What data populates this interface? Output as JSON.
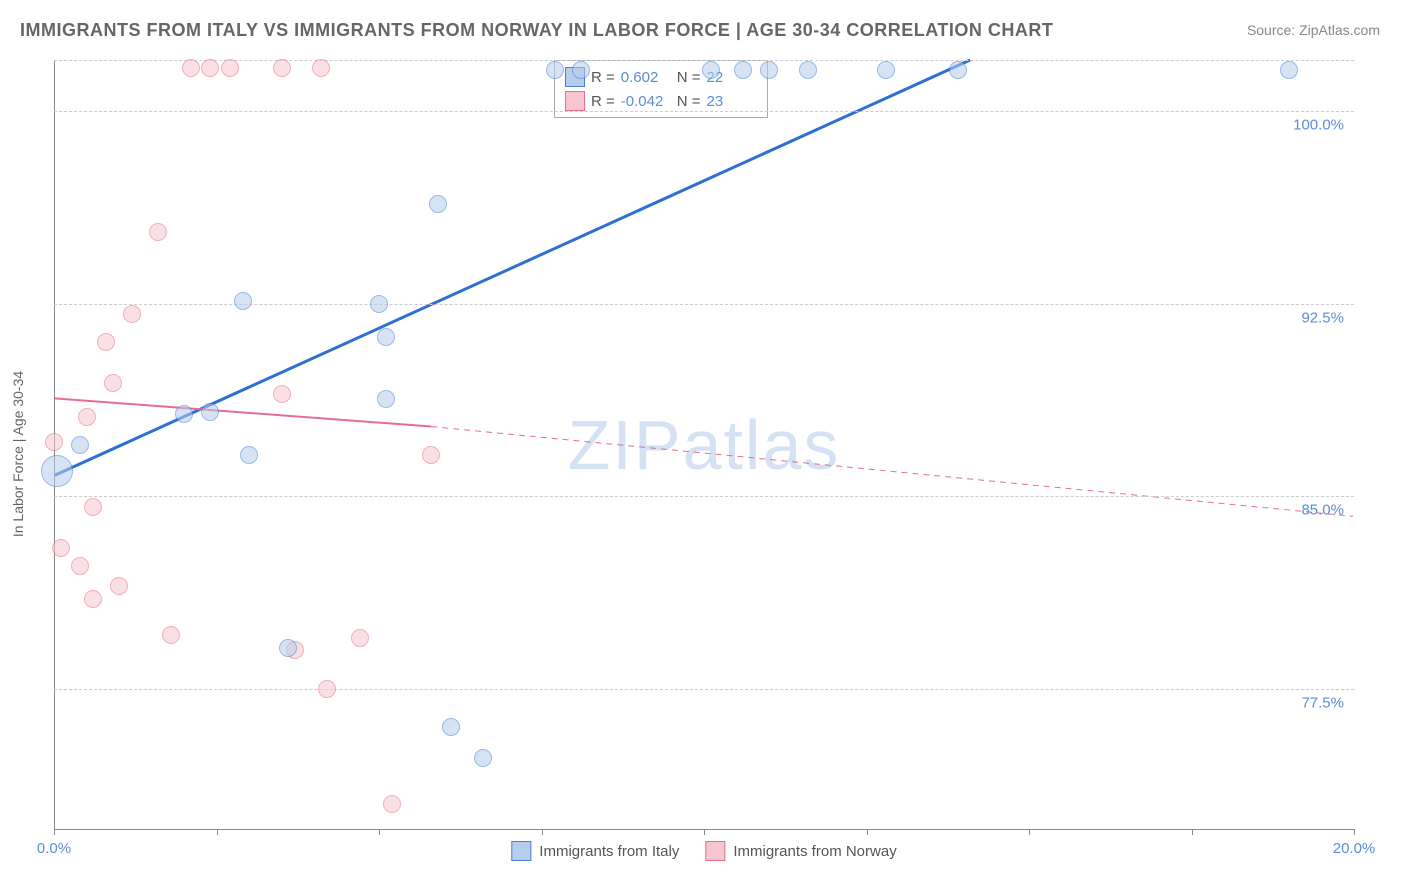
{
  "title": "IMMIGRANTS FROM ITALY VS IMMIGRANTS FROM NORWAY IN LABOR FORCE | AGE 30-34 CORRELATION CHART",
  "source_label": "Source:",
  "source_name": "ZipAtlas.com",
  "y_axis_label": "In Labor Force | Age 30-34",
  "watermark": "ZIPatlas",
  "colors": {
    "series_a_fill": "#b6cdec",
    "series_a_stroke": "#4b7fd1",
    "series_b_fill": "#f6c6d0",
    "series_b_stroke": "#e56f8f",
    "axis_text": "#5b8dd6",
    "grid": "#cccccc",
    "title_text": "#666666",
    "line_a": "#2e6fd4",
    "line_b": "#e56f8f"
  },
  "xlim": [
    0,
    20
  ],
  "ylim": [
    72,
    102
  ],
  "x_ticks": [
    0,
    2.5,
    5,
    7.5,
    10,
    12.5,
    15,
    17.5,
    20
  ],
  "x_tick_labels": {
    "0": "0.0%",
    "20": "20.0%"
  },
  "y_gridlines": [
    77.5,
    85.0,
    92.5,
    100.0,
    102.0
  ],
  "y_tick_labels": {
    "77.5": "77.5%",
    "85.0": "85.0%",
    "92.5": "92.5%",
    "100.0": "100.0%"
  },
  "legend_top": {
    "rows": [
      {
        "swatch": "a",
        "r_label": "R =",
        "r": "0.602",
        "n_label": "N =",
        "n": "22"
      },
      {
        "swatch": "b",
        "r_label": "R =",
        "r": "-0.042",
        "n_label": "N =",
        "n": "23"
      }
    ]
  },
  "legend_bottom": [
    {
      "swatch": "a",
      "label": "Immigrants from Italy"
    },
    {
      "swatch": "b",
      "label": "Immigrants from Norway"
    }
  ],
  "point_radius_default": 9,
  "point_opacity": 0.55,
  "series_a": {
    "points": [
      {
        "x": 0.05,
        "y": 86.0,
        "r": 16
      },
      {
        "x": 0.4,
        "y": 87.0
      },
      {
        "x": 2.0,
        "y": 88.2
      },
      {
        "x": 2.4,
        "y": 88.3
      },
      {
        "x": 2.9,
        "y": 92.6
      },
      {
        "x": 3.0,
        "y": 86.6
      },
      {
        "x": 3.6,
        "y": 79.1
      },
      {
        "x": 5.0,
        "y": 92.5
      },
      {
        "x": 5.1,
        "y": 88.8
      },
      {
        "x": 5.1,
        "y": 91.2
      },
      {
        "x": 5.9,
        "y": 96.4
      },
      {
        "x": 6.1,
        "y": 76.0
      },
      {
        "x": 6.6,
        "y": 74.8
      },
      {
        "x": 7.7,
        "y": 101.6
      },
      {
        "x": 8.1,
        "y": 101.6
      },
      {
        "x": 10.1,
        "y": 101.6
      },
      {
        "x": 10.6,
        "y": 101.6
      },
      {
        "x": 11.0,
        "y": 101.6
      },
      {
        "x": 11.6,
        "y": 101.6
      },
      {
        "x": 12.8,
        "y": 101.6
      },
      {
        "x": 13.9,
        "y": 101.6
      },
      {
        "x": 19.0,
        "y": 101.6
      }
    ],
    "trend": {
      "x1": 0,
      "y1": 85.8,
      "x2": 14.1,
      "y2": 102.0,
      "width": 3
    }
  },
  "series_b": {
    "points": [
      {
        "x": 0.0,
        "y": 87.1
      },
      {
        "x": 0.1,
        "y": 83.0
      },
      {
        "x": 0.4,
        "y": 82.3
      },
      {
        "x": 0.5,
        "y": 88.1
      },
      {
        "x": 0.6,
        "y": 84.6
      },
      {
        "x": 0.6,
        "y": 81.0
      },
      {
        "x": 0.8,
        "y": 91.0
      },
      {
        "x": 0.9,
        "y": 89.4
      },
      {
        "x": 1.0,
        "y": 81.5
      },
      {
        "x": 1.2,
        "y": 92.1
      },
      {
        "x": 1.6,
        "y": 95.3
      },
      {
        "x": 1.8,
        "y": 79.6
      },
      {
        "x": 2.1,
        "y": 101.7
      },
      {
        "x": 2.4,
        "y": 101.7
      },
      {
        "x": 2.7,
        "y": 101.7
      },
      {
        "x": 3.5,
        "y": 101.7
      },
      {
        "x": 3.5,
        "y": 89.0
      },
      {
        "x": 3.7,
        "y": 79.0
      },
      {
        "x": 4.1,
        "y": 101.7
      },
      {
        "x": 4.2,
        "y": 77.5
      },
      {
        "x": 4.7,
        "y": 79.5
      },
      {
        "x": 5.2,
        "y": 73.0
      },
      {
        "x": 5.8,
        "y": 86.6
      }
    ],
    "trend_solid": {
      "x1": 0,
      "y1": 88.8,
      "x2": 5.8,
      "y2": 87.7,
      "width": 2
    },
    "trend_dashed": {
      "x1": 5.8,
      "y1": 87.7,
      "x2": 20,
      "y2": 84.2,
      "width": 1,
      "dash": "6 5"
    }
  }
}
